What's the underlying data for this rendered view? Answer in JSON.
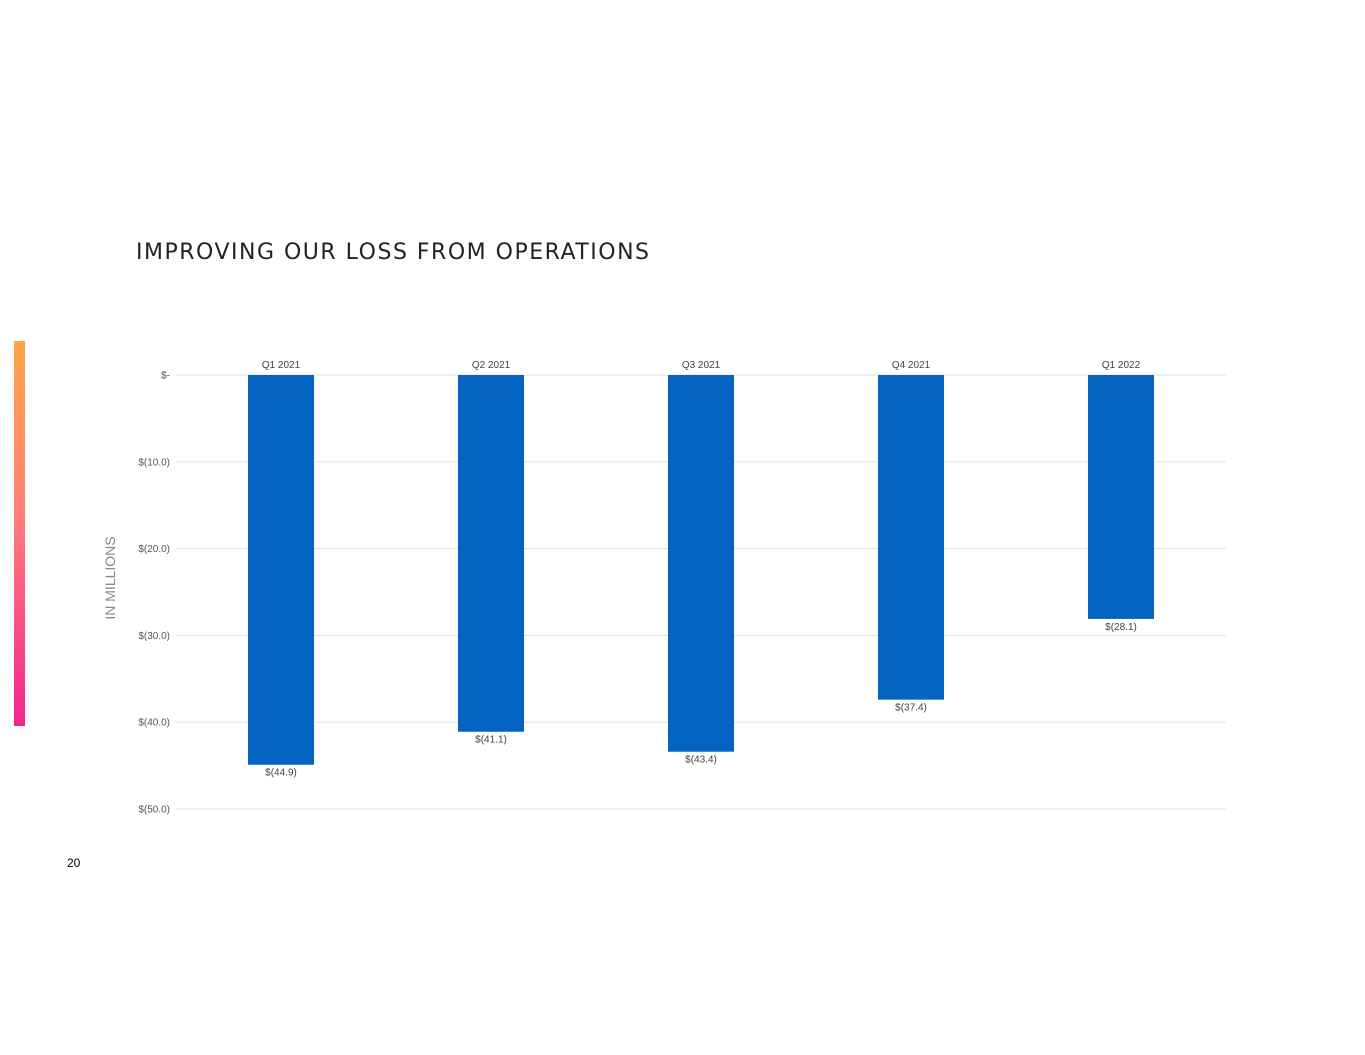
{
  "slide": {
    "title": "IMPROVING OUR LOSS FROM OPERATIONS",
    "page_number": "20",
    "accent_gradient": [
      "#ffa647",
      "#f2258f"
    ]
  },
  "chart_data": {
    "type": "bar",
    "title": "",
    "xlabel": "",
    "ylabel": "IN MILLIONS",
    "categories": [
      "Q1 2021",
      "Q2 2021",
      "Q3 2021",
      "Q4 2021",
      "Q1 2022"
    ],
    "series": [
      {
        "values": [
          -44.9,
          -41.1,
          -43.4,
          -37.4,
          -28.1
        ],
        "data_labels": [
          "$(44.9)",
          "$(41.1)",
          "$(43.4)",
          "$(37.4)",
          "$(28.1)"
        ],
        "color": "#0563c1"
      }
    ],
    "ylim": [
      -50,
      0
    ],
    "yticks": [
      0,
      -10,
      -20,
      -30,
      -40,
      -50
    ],
    "ytick_labels": [
      "$-",
      "$(10.0)",
      "$(20.0)",
      "$(30.0)",
      "$(40.0)",
      "$(50.0)"
    ],
    "category_axis_position": "top",
    "grid": true,
    "legend": "none"
  }
}
